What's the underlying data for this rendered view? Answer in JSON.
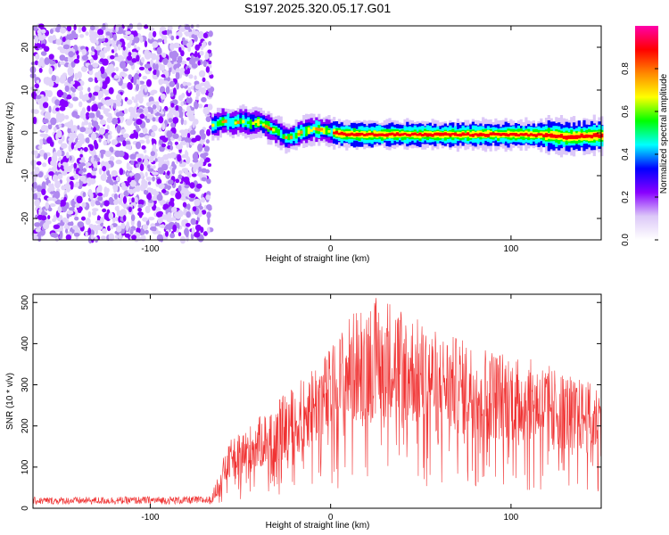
{
  "title": "S197.2025.320.05.17.G01",
  "chart_data": [
    {
      "type": "heatmap",
      "name": "spectrogram",
      "xlabel": "Height of straight line (km)",
      "ylabel": "Frequency (Hz)",
      "xlim": [
        -165,
        150
      ],
      "ylim": [
        -25,
        25
      ],
      "xticks": [
        -100,
        0,
        100
      ],
      "xtick_labels": [
        "-100",
        "0",
        "100"
      ],
      "yticks": [
        -20,
        -10,
        0,
        10,
        20
      ],
      "ytick_labels": [
        "-20",
        "-10",
        "0",
        "10",
        "20"
      ],
      "noise_region_x": [
        -165,
        -66
      ],
      "signal_ridge": {
        "x": [
          -66,
          -60,
          -55,
          -50,
          -45,
          -40,
          -35,
          -30,
          -25,
          -20,
          -15,
          -10,
          -5,
          0,
          5,
          10,
          20,
          40,
          60,
          80,
          100,
          120,
          130,
          140,
          150
        ],
        "y": [
          1.6,
          2.8,
          2.3,
          2.9,
          2.1,
          2.6,
          1.3,
          0.3,
          -1.3,
          -0.6,
          0.5,
          0.8,
          0.6,
          0.2,
          -0.3,
          -0.4,
          -0.4,
          -0.4,
          -0.4,
          -0.4,
          -0.4,
          -0.5,
          -1.0,
          -0.8,
          -0.6
        ]
      },
      "colorbar": {
        "label": "Normalized spectral amplitude",
        "range": [
          0,
          1
        ],
        "ticks": [
          0.0,
          0.2,
          0.4,
          0.6,
          0.8
        ],
        "tick_labels": [
          "0.0",
          "0.2",
          "0.4",
          "0.6",
          "0.8"
        ],
        "colors": [
          "#ffffff",
          "#dcc8f8",
          "#8800ff",
          "#0000ff",
          "#00ffff",
          "#00ff00",
          "#ffff00",
          "#ff8800",
          "#ff0000",
          "#ff00aa"
        ]
      }
    },
    {
      "type": "line",
      "name": "snr",
      "xlabel": "Height of straight line (km)",
      "ylabel": "SNR (10 * v/v)",
      "xlim": [
        -165,
        150
      ],
      "ylim": [
        0,
        520
      ],
      "xticks": [
        -100,
        0,
        100
      ],
      "xtick_labels": [
        "-100",
        "0",
        "100"
      ],
      "yticks": [
        0,
        100,
        200,
        300,
        400,
        500
      ],
      "ytick_labels": [
        "0",
        "100",
        "200",
        "300",
        "400",
        "500"
      ],
      "line_color": "#f03232",
      "envelope": {
        "x": [
          -165,
          -66,
          -60,
          -55,
          -50,
          -40,
          -30,
          -20,
          -10,
          0,
          10,
          20,
          30,
          40,
          50,
          60,
          80,
          100,
          120,
          140,
          150
        ],
        "y": [
          20,
          22,
          90,
          130,
          140,
          170,
          200,
          230,
          270,
          300,
          360,
          390,
          400,
          380,
          350,
          330,
          310,
          290,
          270,
          240,
          230
        ]
      }
    }
  ]
}
